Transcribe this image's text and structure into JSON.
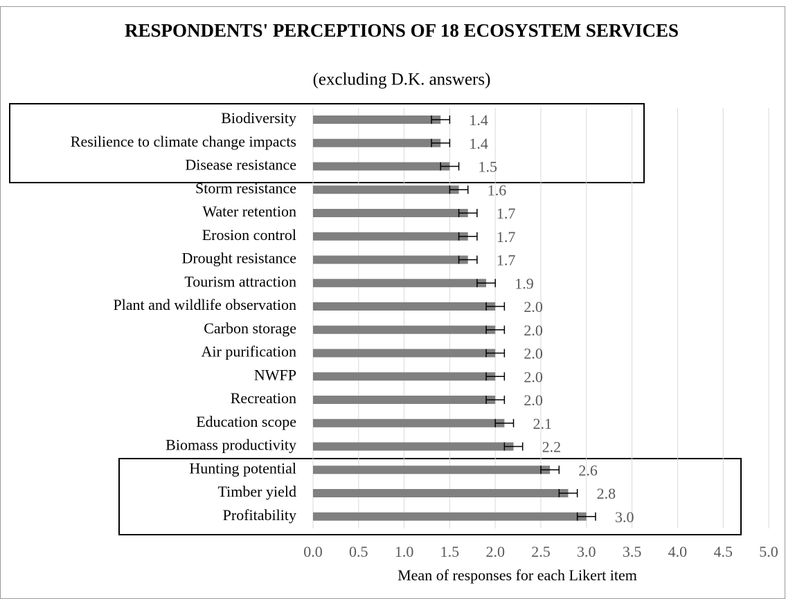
{
  "chart_data": {
    "type": "bar",
    "orientation": "horizontal",
    "title": "RESPONDENTS' PERCEPTIONS OF 18 ECOSYSTEM SERVICES",
    "subtitle": "(excluding D.K. answers)",
    "xlabel": "Mean of responses for each Likert item",
    "categories": [
      "Biodiversity",
      "Resilience to climate change impacts",
      "Disease resistance",
      "Storm resistance",
      "Water retention",
      "Erosion control",
      "Drought resistance",
      "Tourism attraction",
      "Plant and wildlife observation",
      "Carbon storage",
      "Air purification",
      "NWFP",
      "Recreation",
      "Education scope",
      "Biomass productivity",
      "Hunting potential",
      "Timber yield",
      "Profitability"
    ],
    "values": [
      1.4,
      1.4,
      1.5,
      1.6,
      1.7,
      1.7,
      1.7,
      1.9,
      2.0,
      2.0,
      2.0,
      2.0,
      2.0,
      2.1,
      2.2,
      2.6,
      2.8,
      3.0
    ],
    "value_labels": [
      "1.4",
      "1.4",
      "1.5",
      "1.6",
      "1.7",
      "1.7",
      "1.7",
      "1.9",
      "2.0",
      "2.0",
      "2.0",
      "2.0",
      "2.0",
      "2.1",
      "2.2",
      "2.6",
      "2.8",
      "3.0"
    ],
    "errors": [
      0.1,
      0.1,
      0.1,
      0.1,
      0.1,
      0.1,
      0.1,
      0.1,
      0.1,
      0.1,
      0.1,
      0.1,
      0.1,
      0.1,
      0.1,
      0.1,
      0.1,
      0.1
    ],
    "color": "#808080",
    "xlim": [
      0,
      5
    ],
    "xticks": [
      {
        "value": 0,
        "label": "0.0"
      },
      0.5,
      {
        "value": 1,
        "label": "1.0"
      },
      1.5,
      {
        "value": 2,
        "label": "2.0"
      },
      2.5,
      {
        "value": 3,
        "label": "3.0"
      },
      3.5,
      {
        "value": 4,
        "label": "4.0"
      },
      4.5,
      {
        "value": 5,
        "label": "5.0"
      }
    ],
    "grid": true
  }
}
